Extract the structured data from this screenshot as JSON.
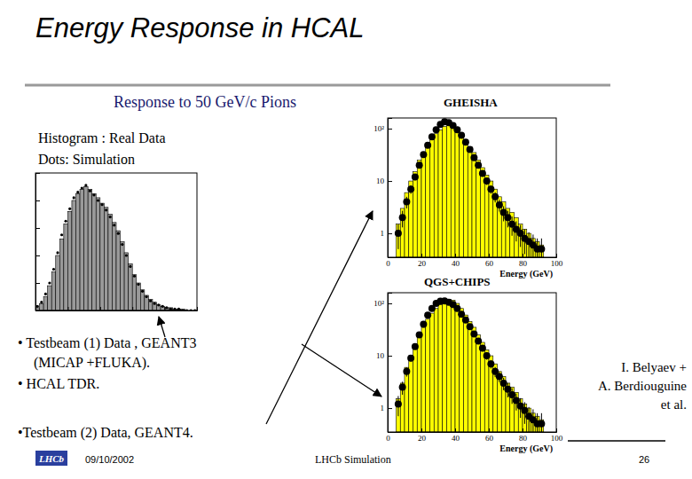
{
  "slide": {
    "title": "Energy Response in HCAL",
    "subtitle": "Response to 50 GeV/c Pions",
    "legend_note": [
      "Histogram : Real Data",
      "Dots: Simulation"
    ],
    "bullets_1": [
      "• Testbeam (1) Data , GEANT3",
      "(MICAP +FLUKA).",
      "• HCAL TDR."
    ],
    "bullet_2": "•Testbeam (2) Data, GEANT4.",
    "authors": [
      "I. Belyaev +",
      "A. Berdiouguine",
      "et al."
    ],
    "footer": {
      "logo": "LHCb",
      "date": "09/10/2002",
      "center": "LHCb Simulation",
      "page": "26"
    }
  },
  "chart_data": [
    {
      "type": "histogram",
      "bins": [
        0,
        2.5,
        5,
        7.5,
        10,
        12.5,
        15,
        17.5,
        20,
        22.5,
        25,
        27.5,
        30,
        32.5,
        35,
        37.5,
        40,
        42.5,
        45,
        47.5,
        50,
        52.5,
        55,
        57.5,
        60,
        62.5,
        65,
        67.5,
        70,
        72.5,
        75,
        77.5,
        80,
        82.5,
        85,
        87.5,
        90,
        92.5,
        95,
        97.5,
        100
      ],
      "series": [
        {
          "type": "bar",
          "color": "#9a9a9a",
          "values": [
            2,
            5,
            10,
            18,
            28,
            40,
            52,
            63,
            72,
            80,
            85,
            88,
            90,
            88,
            85,
            82,
            78,
            75,
            70,
            64,
            58,
            50,
            42,
            34,
            26,
            20,
            15,
            11,
            8,
            6,
            4,
            3,
            2,
            2,
            1,
            1,
            1,
            0,
            0,
            0
          ]
        },
        {
          "type": "scatter",
          "color": "#000000",
          "marker": "circle",
          "values": [
            3,
            6,
            12,
            20,
            30,
            42,
            55,
            65,
            74,
            82,
            86,
            89,
            91,
            87,
            84,
            80,
            77,
            73,
            68,
            62,
            56,
            48,
            40,
            32,
            25,
            19,
            14,
            10,
            7,
            5,
            4,
            3,
            2,
            1,
            1,
            1,
            0,
            0,
            0,
            0
          ]
        }
      ],
      "xlim": [
        0,
        100
      ],
      "ylim": [
        0,
        100
      ],
      "xticks": [
        0,
        20,
        40,
        60,
        80,
        100
      ],
      "yticks": [
        0,
        20,
        40,
        60,
        80,
        100
      ],
      "tick_labels": false
    },
    {
      "type": "histogram",
      "title": "GHEISHA",
      "xlabel": "Energy (GeV)",
      "log": "y",
      "bins": [
        5,
        7.5,
        10,
        12.5,
        15,
        17.5,
        20,
        22.5,
        25,
        27.5,
        30,
        32.5,
        35,
        37.5,
        40,
        42.5,
        45,
        47.5,
        50,
        52.5,
        55,
        57.5,
        60,
        62.5,
        65,
        67.5,
        70,
        72.5,
        75,
        77.5,
        80,
        82.5,
        85,
        87.5,
        90,
        92.5
      ],
      "series": [
        {
          "type": "bar",
          "color": "#ffff00",
          "values": [
            1.5,
            3,
            6,
            10,
            15,
            25,
            35,
            50,
            65,
            80,
            95,
            110,
            120,
            115,
            100,
            80,
            60,
            45,
            35,
            25,
            18,
            13,
            10,
            7,
            5,
            4,
            3,
            2.5,
            2,
            1.5,
            1.2,
            1,
            0.8,
            0.7,
            0.6
          ]
        },
        {
          "type": "scatter",
          "color": "#000000",
          "marker": "circle",
          "values": [
            1,
            2,
            4,
            7,
            12,
            20,
            32,
            48,
            70,
            95,
            120,
            135,
            130,
            115,
            95,
            75,
            55,
            40,
            28,
            20,
            14,
            10,
            7,
            5,
            3.5,
            2.5,
            2,
            1.5,
            1.2,
            1,
            0.8,
            0.7,
            0.6,
            0.5,
            0.5
          ],
          "errors": [
            0.5,
            0.7,
            1,
            1.3,
            1.7,
            2.2,
            2.8,
            3.5,
            4.2,
            4.9,
            5.5,
            5.8,
            5.7,
            5.4,
            4.9,
            4.3,
            3.7,
            3.2,
            2.6,
            2.2,
            1.9,
            1.6,
            1.3,
            1.1,
            0.9,
            0.8,
            0.7,
            0.6,
            0.5,
            0.45,
            0.4,
            0.35,
            0.35,
            0.3,
            0.3
          ]
        }
      ],
      "xlim": [
        0,
        100
      ],
      "ylim": [
        0.35,
        160
      ],
      "xticks": [
        0,
        20,
        40,
        60,
        80,
        100
      ],
      "yticks": [
        1,
        10,
        {
          "value": 100,
          "label": "10²"
        }
      ]
    },
    {
      "type": "histogram",
      "title": "QGS+CHIPS",
      "xlabel": "Energy (GeV)",
      "log": "y",
      "bins": [
        5,
        7.5,
        10,
        12.5,
        15,
        17.5,
        20,
        22.5,
        25,
        27.5,
        30,
        32.5,
        35,
        37.5,
        40,
        42.5,
        45,
        47.5,
        50,
        52.5,
        55,
        57.5,
        60,
        62.5,
        65,
        67.5,
        70,
        72.5,
        75,
        77.5,
        80,
        82.5,
        85,
        87.5,
        90,
        92.5
      ],
      "series": [
        {
          "type": "bar",
          "color": "#ffff00",
          "values": [
            1.5,
            3,
            6,
            10,
            15,
            25,
            35,
            50,
            65,
            80,
            95,
            110,
            120,
            115,
            100,
            80,
            60,
            45,
            35,
            25,
            18,
            13,
            10,
            7,
            5,
            4,
            3,
            2.5,
            2,
            1.5,
            1.2,
            1,
            0.8,
            0.7,
            0.6
          ]
        },
        {
          "type": "scatter",
          "color": "#000000",
          "marker": "circle",
          "values": [
            1.2,
            2.5,
            5,
            9,
            15,
            25,
            40,
            60,
            80,
            100,
            110,
            112,
            105,
            95,
            80,
            62,
            48,
            36,
            26,
            19,
            14,
            10,
            7,
            5,
            4,
            3,
            2.3,
            1.8,
            1.4,
            1.1,
            0.9,
            0.7,
            0.6,
            0.5,
            0.5
          ],
          "errors": [
            0.5,
            0.7,
            1,
            1.3,
            1.7,
            2.2,
            2.8,
            3.5,
            4.2,
            4.9,
            5.5,
            5.8,
            5.7,
            5.4,
            4.9,
            4.3,
            3.7,
            3.2,
            2.6,
            2.2,
            1.9,
            1.6,
            1.3,
            1.1,
            0.9,
            0.8,
            0.7,
            0.6,
            0.5,
            0.45,
            0.4,
            0.35,
            0.35,
            0.3,
            0.3
          ]
        }
      ],
      "xlim": [
        0,
        100
      ],
      "ylim": [
        0.35,
        160
      ],
      "xticks": [
        0,
        20,
        40,
        60,
        80,
        100
      ],
      "yticks": [
        1,
        10,
        {
          "value": 100,
          "label": "10²"
        }
      ]
    }
  ]
}
